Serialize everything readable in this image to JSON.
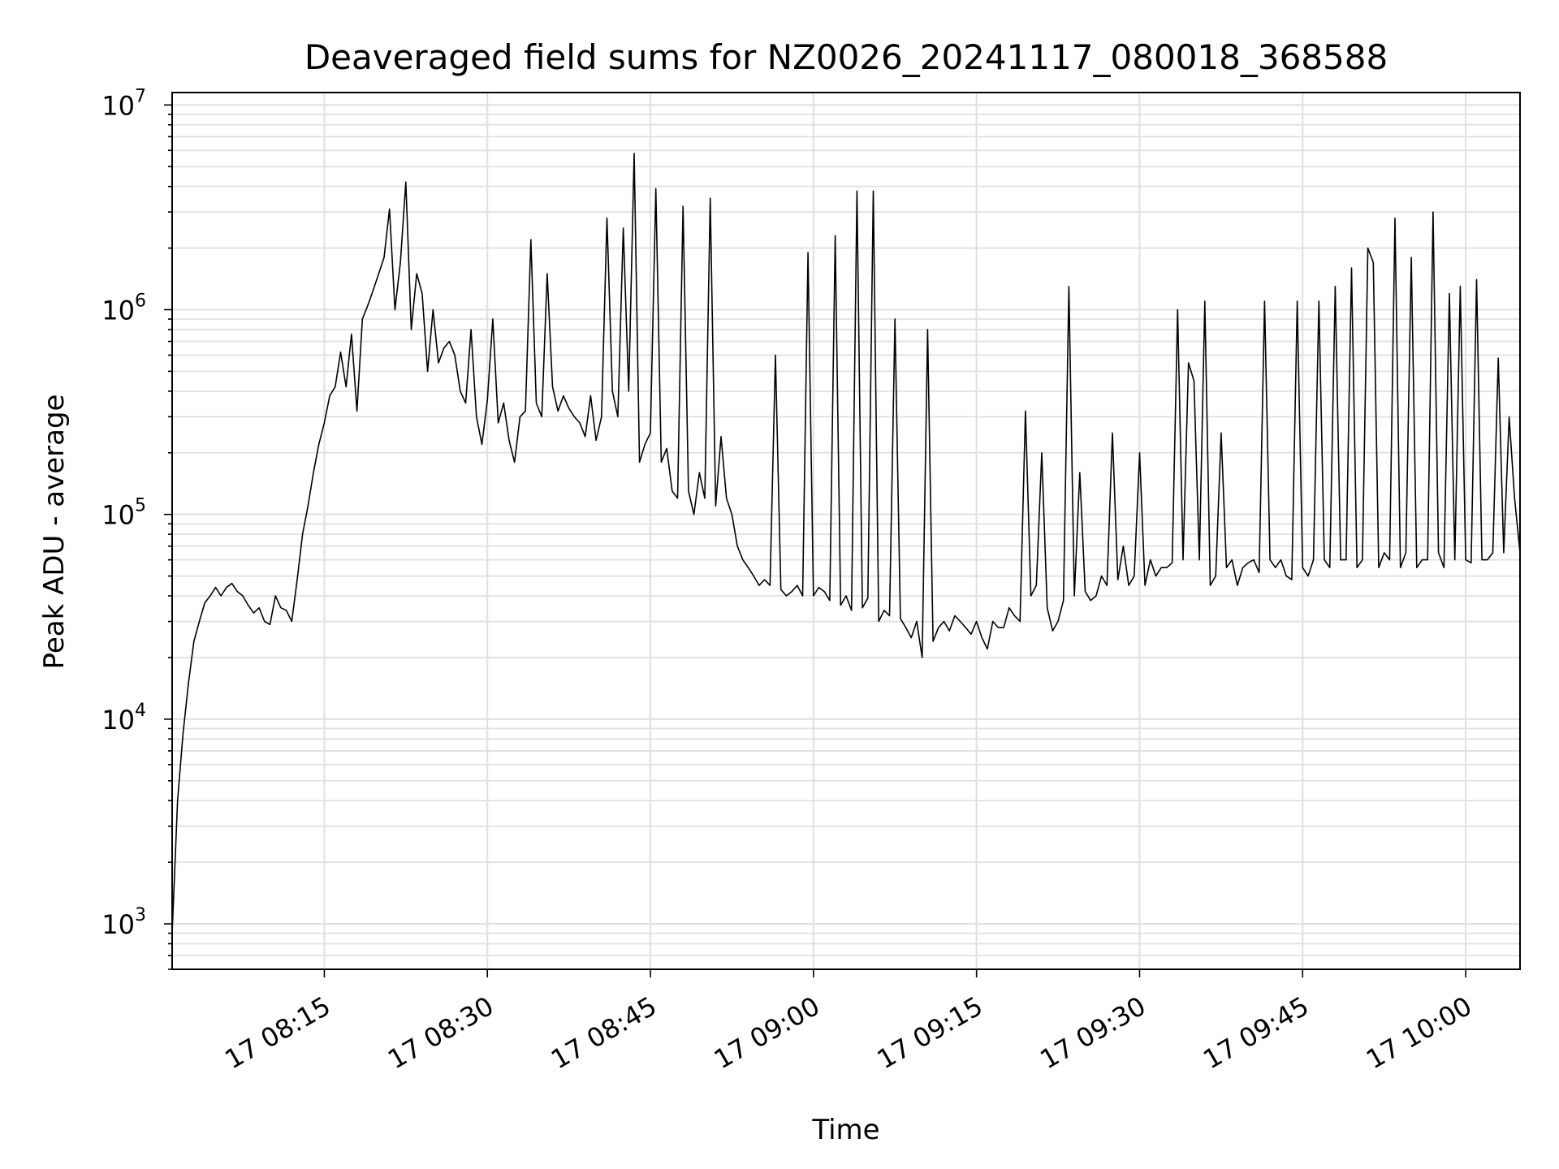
{
  "chart_data": {
    "type": "line",
    "title": "Deaveraged field sums for NZ0026_20241117_080018_368588",
    "xlabel": "Time",
    "ylabel": "Peak ADU - average",
    "y_scale": "log",
    "ylim": [
      600,
      11500000
    ],
    "xlim": [
      "2024-11-17T08:01:00",
      "2024-11-17T10:05:00"
    ],
    "grid": true,
    "line_color": "#000000",
    "grid_color": "#e0e0e0",
    "x_ticks": [
      {
        "label": "17 08:15",
        "t": "2024-11-17T08:15:00"
      },
      {
        "label": "17 08:30",
        "t": "2024-11-17T08:30:00"
      },
      {
        "label": "17 08:45",
        "t": "2024-11-17T08:45:00"
      },
      {
        "label": "17 09:00",
        "t": "2024-11-17T09:00:00"
      },
      {
        "label": "17 09:15",
        "t": "2024-11-17T09:15:00"
      },
      {
        "label": "17 09:30",
        "t": "2024-11-17T09:30:00"
      },
      {
        "label": "17 09:45",
        "t": "2024-11-17T09:45:00"
      },
      {
        "label": "17 10:00",
        "t": "2024-11-17T10:00:00"
      }
    ],
    "y_ticks": [
      {
        "base": "10",
        "exp": "3",
        "value": 1000
      },
      {
        "base": "10",
        "exp": "4",
        "value": 10000
      },
      {
        "base": "10",
        "exp": "5",
        "value": 100000
      },
      {
        "base": "10",
        "exp": "6",
        "value": 1000000
      },
      {
        "base": "10",
        "exp": "7",
        "value": 10000000
      }
    ],
    "series": [
      {
        "x": [
          "2024-11-17T08:01:00",
          "2024-11-17T08:01:30",
          "2024-11-17T08:02:00",
          "2024-11-17T08:02:30",
          "2024-11-17T08:03:00",
          "2024-11-17T08:03:30",
          "2024-11-17T08:04:00",
          "2024-11-17T08:04:30",
          "2024-11-17T08:05:00",
          "2024-11-17T08:05:30",
          "2024-11-17T08:06:00",
          "2024-11-17T08:06:30",
          "2024-11-17T08:07:00",
          "2024-11-17T08:07:30",
          "2024-11-17T08:08:00",
          "2024-11-17T08:08:30",
          "2024-11-17T08:09:00",
          "2024-11-17T08:09:30",
          "2024-11-17T08:10:00",
          "2024-11-17T08:10:30",
          "2024-11-17T08:11:00",
          "2024-11-17T08:11:30",
          "2024-11-17T08:12:00",
          "2024-11-17T08:12:30",
          "2024-11-17T08:13:00",
          "2024-11-17T08:13:30",
          "2024-11-17T08:14:00",
          "2024-11-17T08:14:30",
          "2024-11-17T08:15:00",
          "2024-11-17T08:15:30",
          "2024-11-17T08:16:00",
          "2024-11-17T08:16:30",
          "2024-11-17T08:17:00",
          "2024-11-17T08:17:30",
          "2024-11-17T08:18:00",
          "2024-11-17T08:18:30",
          "2024-11-17T08:19:00",
          "2024-11-17T08:19:30",
          "2024-11-17T08:20:00",
          "2024-11-17T08:20:30",
          "2024-11-17T08:21:00",
          "2024-11-17T08:21:30",
          "2024-11-17T08:22:00",
          "2024-11-17T08:22:30",
          "2024-11-17T08:23:00",
          "2024-11-17T08:23:30",
          "2024-11-17T08:24:00",
          "2024-11-17T08:24:30",
          "2024-11-17T08:25:00",
          "2024-11-17T08:25:30",
          "2024-11-17T08:26:00",
          "2024-11-17T08:26:30",
          "2024-11-17T08:27:00",
          "2024-11-17T08:27:30",
          "2024-11-17T08:28:00",
          "2024-11-17T08:28:30",
          "2024-11-17T08:29:00",
          "2024-11-17T08:29:30",
          "2024-11-17T08:30:00",
          "2024-11-17T08:30:30",
          "2024-11-17T08:31:00",
          "2024-11-17T08:31:30",
          "2024-11-17T08:32:00",
          "2024-11-17T08:32:30",
          "2024-11-17T08:33:00",
          "2024-11-17T08:33:30",
          "2024-11-17T08:34:00",
          "2024-11-17T08:34:30",
          "2024-11-17T08:35:00",
          "2024-11-17T08:35:30",
          "2024-11-17T08:36:00",
          "2024-11-17T08:36:30",
          "2024-11-17T08:37:00",
          "2024-11-17T08:37:30",
          "2024-11-17T08:38:00",
          "2024-11-17T08:38:30",
          "2024-11-17T08:39:00",
          "2024-11-17T08:39:30",
          "2024-11-17T08:40:00",
          "2024-11-17T08:40:30",
          "2024-11-17T08:41:00",
          "2024-11-17T08:41:30",
          "2024-11-17T08:42:00",
          "2024-11-17T08:42:30",
          "2024-11-17T08:43:00",
          "2024-11-17T08:43:30",
          "2024-11-17T08:44:00",
          "2024-11-17T08:44:30",
          "2024-11-17T08:45:00",
          "2024-11-17T08:45:30",
          "2024-11-17T08:46:00",
          "2024-11-17T08:46:30",
          "2024-11-17T08:47:00",
          "2024-11-17T08:47:30",
          "2024-11-17T08:48:00",
          "2024-11-17T08:48:30",
          "2024-11-17T08:49:00",
          "2024-11-17T08:49:30",
          "2024-11-17T08:50:00",
          "2024-11-17T08:50:30",
          "2024-11-17T08:51:00",
          "2024-11-17T08:51:30",
          "2024-11-17T08:52:00",
          "2024-11-17T08:52:30",
          "2024-11-17T08:53:00",
          "2024-11-17T08:53:30",
          "2024-11-17T08:54:00",
          "2024-11-17T08:54:30",
          "2024-11-17T08:55:00",
          "2024-11-17T08:55:30",
          "2024-11-17T08:56:00",
          "2024-11-17T08:56:30",
          "2024-11-17T08:57:00",
          "2024-11-17T08:57:30",
          "2024-11-17T08:58:00",
          "2024-11-17T08:58:30",
          "2024-11-17T08:59:00",
          "2024-11-17T08:59:30",
          "2024-11-17T09:00:00",
          "2024-11-17T09:00:30",
          "2024-11-17T09:01:00",
          "2024-11-17T09:01:30",
          "2024-11-17T09:02:00",
          "2024-11-17T09:02:30",
          "2024-11-17T09:03:00",
          "2024-11-17T09:03:30",
          "2024-11-17T09:04:00",
          "2024-11-17T09:04:30",
          "2024-11-17T09:05:00",
          "2024-11-17T09:05:30",
          "2024-11-17T09:06:00",
          "2024-11-17T09:06:30",
          "2024-11-17T09:07:00",
          "2024-11-17T09:07:30",
          "2024-11-17T09:08:00",
          "2024-11-17T09:08:30",
          "2024-11-17T09:09:00",
          "2024-11-17T09:09:30",
          "2024-11-17T09:10:00",
          "2024-11-17T09:10:30",
          "2024-11-17T09:11:00",
          "2024-11-17T09:11:30",
          "2024-11-17T09:12:00",
          "2024-11-17T09:12:30",
          "2024-11-17T09:13:00",
          "2024-11-17T09:13:30",
          "2024-11-17T09:14:00",
          "2024-11-17T09:14:30",
          "2024-11-17T09:15:00",
          "2024-11-17T09:15:30",
          "2024-11-17T09:16:00",
          "2024-11-17T09:16:30",
          "2024-11-17T09:17:00",
          "2024-11-17T09:17:30",
          "2024-11-17T09:18:00",
          "2024-11-17T09:18:30",
          "2024-11-17T09:19:00",
          "2024-11-17T09:19:30",
          "2024-11-17T09:20:00",
          "2024-11-17T09:20:30",
          "2024-11-17T09:21:00",
          "2024-11-17T09:21:30",
          "2024-11-17T09:22:00",
          "2024-11-17T09:22:30",
          "2024-11-17T09:23:00",
          "2024-11-17T09:23:30",
          "2024-11-17T09:24:00",
          "2024-11-17T09:24:30",
          "2024-11-17T09:25:00",
          "2024-11-17T09:25:30",
          "2024-11-17T09:26:00",
          "2024-11-17T09:26:30",
          "2024-11-17T09:27:00",
          "2024-11-17T09:27:30",
          "2024-11-17T09:28:00",
          "2024-11-17T09:28:30",
          "2024-11-17T09:29:00",
          "2024-11-17T09:29:30",
          "2024-11-17T09:30:00",
          "2024-11-17T09:30:30",
          "2024-11-17T09:31:00",
          "2024-11-17T09:31:30",
          "2024-11-17T09:32:00",
          "2024-11-17T09:32:30",
          "2024-11-17T09:33:00",
          "2024-11-17T09:33:30",
          "2024-11-17T09:34:00",
          "2024-11-17T09:34:30",
          "2024-11-17T09:35:00",
          "2024-11-17T09:35:30",
          "2024-11-17T09:36:00",
          "2024-11-17T09:36:30",
          "2024-11-17T09:37:00",
          "2024-11-17T09:37:30",
          "2024-11-17T09:38:00",
          "2024-11-17T09:38:30",
          "2024-11-17T09:39:00",
          "2024-11-17T09:39:30",
          "2024-11-17T09:40:00",
          "2024-11-17T09:40:30",
          "2024-11-17T09:41:00",
          "2024-11-17T09:41:30",
          "2024-11-17T09:42:00",
          "2024-11-17T09:42:30",
          "2024-11-17T09:43:00",
          "2024-11-17T09:43:30",
          "2024-11-17T09:44:00",
          "2024-11-17T09:44:30",
          "2024-11-17T09:45:00",
          "2024-11-17T09:45:30",
          "2024-11-17T09:46:00",
          "2024-11-17T09:46:30",
          "2024-11-17T09:47:00",
          "2024-11-17T09:47:30",
          "2024-11-17T09:48:00",
          "2024-11-17T09:48:30",
          "2024-11-17T09:49:00",
          "2024-11-17T09:49:30",
          "2024-11-17T09:50:00",
          "2024-11-17T09:50:30",
          "2024-11-17T09:51:00",
          "2024-11-17T09:51:30",
          "2024-11-17T09:52:00",
          "2024-11-17T09:52:30",
          "2024-11-17T09:53:00",
          "2024-11-17T09:53:30",
          "2024-11-17T09:54:00",
          "2024-11-17T09:54:30",
          "2024-11-17T09:55:00",
          "2024-11-17T09:55:30",
          "2024-11-17T09:56:00",
          "2024-11-17T09:56:30",
          "2024-11-17T09:57:00",
          "2024-11-17T09:57:30",
          "2024-11-17T09:58:00",
          "2024-11-17T09:58:30",
          "2024-11-17T09:59:00",
          "2024-11-17T09:59:30",
          "2024-11-17T10:00:00",
          "2024-11-17T10:00:30",
          "2024-11-17T10:01:00",
          "2024-11-17T10:01:30",
          "2024-11-17T10:02:00",
          "2024-11-17T10:02:30",
          "2024-11-17T10:03:00",
          "2024-11-17T10:03:30",
          "2024-11-17T10:04:00",
          "2024-11-17T10:04:30",
          "2024-11-17T10:05:00"
        ],
        "y": [
          900,
          4000,
          8500,
          15000,
          24000,
          30000,
          37000,
          40000,
          44000,
          40000,
          44000,
          46000,
          42000,
          40000,
          36000,
          33000,
          35000,
          30000,
          29000,
          40000,
          35000,
          34000,
          30000,
          48000,
          80000,
          110000,
          160000,
          220000,
          280000,
          380000,
          420000,
          620000,
          420000,
          760000,
          320000,
          900000,
          1050000,
          1250000,
          1500000,
          1800000,
          3100000,
          1000000,
          1700000,
          4200000,
          800000,
          1500000,
          1200000,
          500000,
          1000000,
          550000,
          650000,
          700000,
          600000,
          400000,
          350000,
          800000,
          300000,
          220000,
          360000,
          900000,
          280000,
          350000,
          230000,
          180000,
          300000,
          320000,
          2200000,
          350000,
          300000,
          1500000,
          420000,
          320000,
          380000,
          330000,
          300000,
          280000,
          240000,
          380000,
          230000,
          300000,
          2800000,
          400000,
          300000,
          2500000,
          400000,
          5800000,
          180000,
          220000,
          250000,
          3900000,
          180000,
          210000,
          130000,
          120000,
          3200000,
          130000,
          100000,
          160000,
          120000,
          3500000,
          110000,
          240000,
          120000,
          100000,
          70000,
          60000,
          55000,
          50000,
          45000,
          48000,
          45000,
          600000,
          43000,
          40000,
          42000,
          45000,
          40000,
          1900000,
          40000,
          44000,
          42000,
          38000,
          2300000,
          36000,
          40000,
          34000,
          3800000,
          35000,
          39000,
          3800000,
          30000,
          34000,
          32000,
          900000,
          31000,
          28000,
          25000,
          30000,
          20000,
          800000,
          24000,
          28000,
          30000,
          27000,
          32000,
          30000,
          28000,
          26000,
          30000,
          25000,
          22000,
          30000,
          28000,
          28000,
          35000,
          32000,
          30000,
          320000,
          40000,
          45000,
          200000,
          35000,
          27000,
          30000,
          38000,
          1300000,
          40000,
          160000,
          42000,
          38000,
          40000,
          50000,
          45000,
          250000,
          48000,
          70000,
          45000,
          50000,
          200000,
          45000,
          60000,
          50000,
          55000,
          55000,
          58000,
          1000000,
          60000,
          550000,
          450000,
          60000,
          1100000,
          45000,
          50000,
          250000,
          55000,
          60000,
          45000,
          55000,
          58000,
          60000,
          52000,
          1100000,
          60000,
          55000,
          60000,
          50000,
          48000,
          1100000,
          55000,
          50000,
          60000,
          1100000,
          60000,
          55000,
          1300000,
          60000,
          60000,
          1600000,
          55000,
          60000,
          2000000,
          1700000,
          55000,
          65000,
          60000,
          2800000,
          55000,
          65000,
          1800000,
          55000,
          60000,
          60000,
          3000000,
          65000,
          55000,
          1200000,
          60000,
          1300000,
          60000,
          58000,
          1400000,
          60000,
          60000,
          65000,
          580000,
          65000,
          300000,
          120000,
          65000
        ]
      }
    ]
  }
}
